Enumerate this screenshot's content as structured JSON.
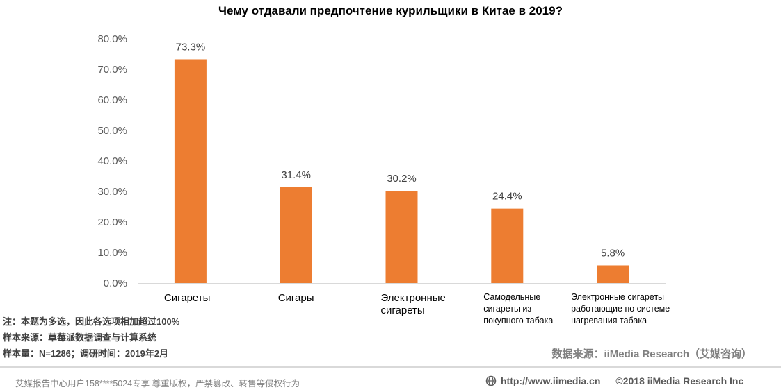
{
  "chart_data": {
    "type": "bar",
    "title": "Чему отдавали предпочтение курильщики в Китае в 2019?",
    "categories": [
      [
        "Сигареты"
      ],
      [
        "Сигары"
      ],
      [
        "Электронные",
        "сигареты"
      ],
      [
        "Самодельные",
        "сигареты из",
        "покупного табака"
      ],
      [
        "Электронные сигареты",
        "работающие по системе",
        "нагревания табака"
      ]
    ],
    "values": [
      73.3,
      31.4,
      30.2,
      24.4,
      5.8
    ],
    "value_labels": [
      "73.3%",
      "31.4%",
      "30.2%",
      "24.4%",
      "5.8%"
    ],
    "ylim": [
      0,
      80
    ],
    "yticks": [
      "0.0%",
      "10.0%",
      "20.0%",
      "30.0%",
      "40.0%",
      "50.0%",
      "60.0%",
      "70.0%",
      "80.0%"
    ],
    "grid": false,
    "bar_color": "#ED7D31",
    "xlabel": "",
    "ylabel": ""
  },
  "notes": [
    "注：本题为多选，因此各选项相加超过100%",
    "样本来源：草莓派数据调查与计算系统",
    "样本量：N=1286；调研时间：2019年2月"
  ],
  "source": "数据来源：iiMedia Research（艾媒咨询）",
  "footer": {
    "left": "艾媒报告中心用户158****5024专享 尊重版权，严禁篡改、转售等侵权行为",
    "url": "http://www.iimedia.cn",
    "copyright": "©2018  iiMedia Research  Inc"
  }
}
